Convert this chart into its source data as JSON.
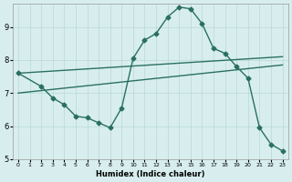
{
  "xlabel": "Humidex (Indice chaleur)",
  "background_color": "#d8eeee",
  "line_color": "#2a7060",
  "grid_color": "#b8d8d8",
  "xlim": [
    -0.5,
    23.5
  ],
  "ylim": [
    5.0,
    9.7
  ],
  "yticks": [
    5,
    6,
    7,
    8,
    9
  ],
  "xticks": [
    0,
    1,
    2,
    3,
    4,
    5,
    6,
    7,
    8,
    9,
    10,
    11,
    12,
    13,
    14,
    15,
    16,
    17,
    18,
    19,
    20,
    21,
    22,
    23
  ],
  "trend1_x": [
    0,
    23
  ],
  "trend1_y": [
    7.6,
    8.1
  ],
  "trend2_x": [
    0,
    23
  ],
  "trend2_y": [
    7.0,
    7.85
  ],
  "curve_x": [
    0,
    2,
    3,
    4,
    5,
    6,
    7,
    8,
    9,
    10,
    11,
    12,
    13,
    14,
    15,
    16,
    17,
    18,
    19,
    20,
    21,
    22,
    23
  ],
  "curve_y": [
    7.6,
    7.2,
    6.85,
    6.65,
    6.3,
    6.25,
    6.1,
    5.95,
    6.55,
    8.05,
    8.6,
    8.8,
    9.3,
    9.6,
    9.55,
    9.1,
    8.35,
    8.2,
    7.8,
    7.45,
    5.95,
    5.45,
    5.25
  ],
  "marker": "D",
  "markersize": 2.5,
  "linewidth": 1.0
}
